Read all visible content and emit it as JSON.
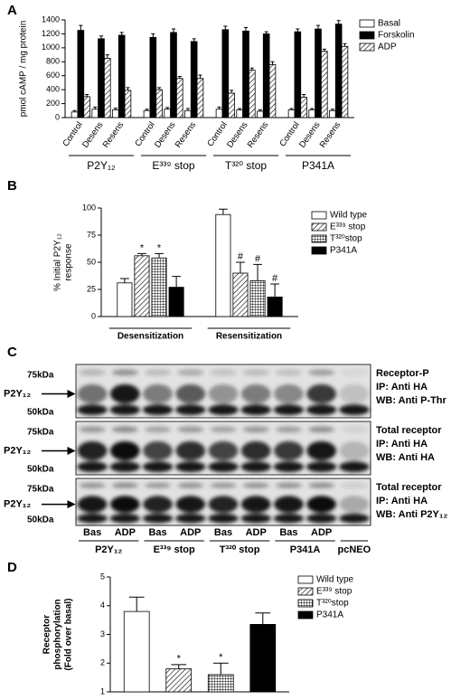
{
  "chart_data": [
    {
      "type": "bar",
      "panel_label": "A",
      "y_label": [
        "pmol cAMP / mg protein"
      ],
      "categories": [
        "Control",
        "Desens",
        "Resens",
        "Control",
        "Desens",
        "Resens",
        "Control",
        "Desens",
        "Resens",
        "Control",
        "Desens",
        "Resens"
      ],
      "groups": [
        "P2Y₁₂",
        "E³³⁹ stop",
        "T³²⁰ stop",
        "P341A"
      ],
      "series": [
        {
          "name": "Basal",
          "color": "#ffffff",
          "fill_style": "solid",
          "values": [
            80,
            120,
            110,
            100,
            120,
            100,
            120,
            110,
            90,
            110,
            110,
            100
          ],
          "errors": [
            20,
            30,
            25,
            20,
            25,
            30,
            30,
            20,
            20,
            20,
            20,
            20
          ]
        },
        {
          "name": "Forskolin",
          "color": "#000000",
          "fill_style": "solid",
          "values": [
            1250,
            1130,
            1180,
            1150,
            1220,
            1090,
            1260,
            1240,
            1200,
            1230,
            1270,
            1340
          ],
          "errors": [
            70,
            40,
            40,
            50,
            50,
            40,
            50,
            50,
            30,
            40,
            50,
            50
          ]
        },
        {
          "name": "ADP",
          "color": "#000000",
          "fill_style": "hatch",
          "values": [
            300,
            850,
            390,
            400,
            560,
            560,
            350,
            680,
            760,
            290,
            950,
            1020
          ],
          "errors": [
            30,
            50,
            40,
            30,
            30,
            50,
            40,
            30,
            40,
            40,
            30,
            40
          ]
        }
      ],
      "ylim": [
        0,
        1400
      ],
      "yticks": [
        0,
        200,
        400,
        600,
        800,
        1000,
        1200,
        1400
      ]
    },
    {
      "type": "bar",
      "panel_label": "B",
      "y_label": [
        "% Initial P2Y₁₂",
        "response"
      ],
      "categories": [
        "Desensitization",
        "Resensitization"
      ],
      "series": [
        {
          "name": "Wild type",
          "color": "#ffffff",
          "fill_style": "solid",
          "values": [
            31,
            94
          ],
          "errors": [
            4,
            5
          ]
        },
        {
          "name": "E³³⁹ stop",
          "color": "#000000",
          "fill_style": "hatch",
          "values": [
            56,
            40
          ],
          "errors": [
            2,
            10
          ],
          "significance": [
            "*",
            "#"
          ]
        },
        {
          "name": "T³²⁰stop",
          "color": "#000000",
          "fill_style": "grid",
          "values": [
            54,
            33
          ],
          "errors": [
            4,
            15
          ],
          "significance": [
            "*",
            "#"
          ]
        },
        {
          "name": "P341A",
          "color": "#000000",
          "fill_style": "solid",
          "values": [
            27,
            18
          ],
          "errors": [
            10,
            12
          ],
          "significance": [
            null,
            "#"
          ]
        }
      ],
      "ylim": [
        0,
        100
      ],
      "yticks": [
        0,
        25,
        50,
        75,
        100
      ]
    },
    {
      "type": "bar",
      "panel_label": "D",
      "y_label": [
        "Receptor",
        "phosphorylation",
        "(Fold over basal)"
      ],
      "series": [
        {
          "name": "Wild type",
          "color": "#ffffff",
          "fill_style": "solid",
          "values": [
            3.8
          ],
          "errors": [
            0.5
          ]
        },
        {
          "name": "E³³⁹ stop",
          "color": "#000000",
          "fill_style": "hatch",
          "values": [
            1.8
          ],
          "errors": [
            0.15
          ],
          "significance": [
            "*"
          ]
        },
        {
          "name": "T³²⁰stop",
          "color": "#000000",
          "fill_style": "grid",
          "values": [
            1.6
          ],
          "errors": [
            0.4
          ],
          "significance": [
            "*"
          ]
        },
        {
          "name": "P341A",
          "color": "#000000",
          "fill_style": "solid",
          "values": [
            3.35
          ],
          "errors": [
            0.4
          ]
        }
      ],
      "ylim": [
        1,
        5
      ],
      "yticks": [
        1,
        2,
        3,
        4,
        5
      ]
    }
  ],
  "blot": {
    "panel_label": "C",
    "panels": [
      {
        "markers": [
          "75kDa",
          "50kDa"
        ],
        "band": "P2Y₁₂",
        "caption": [
          "Receptor-P",
          "IP: Anti HA",
          "WB: Anti P-Thr"
        ]
      },
      {
        "markers": [
          "75kDa",
          "50kDa"
        ],
        "band": "P2Y₁₂",
        "caption": [
          "Total receptor",
          "IP: Anti HA",
          "WB: Anti HA"
        ]
      },
      {
        "markers": [
          "75kDa",
          "50kDa"
        ],
        "band": "P2Y₁₂",
        "caption": [
          "Total receptor",
          "IP: Anti HA",
          "WB: Anti P2Y₁₂"
        ]
      }
    ],
    "lanes": [
      "Bas",
      "ADP",
      "Bas",
      "ADP",
      "Bas",
      "ADP",
      "Bas",
      "ADP"
    ],
    "groups": [
      "P2Y₁₂",
      "E³³⁹ stop",
      "T³²⁰ stop",
      "P341A",
      "pcNEO"
    ]
  }
}
